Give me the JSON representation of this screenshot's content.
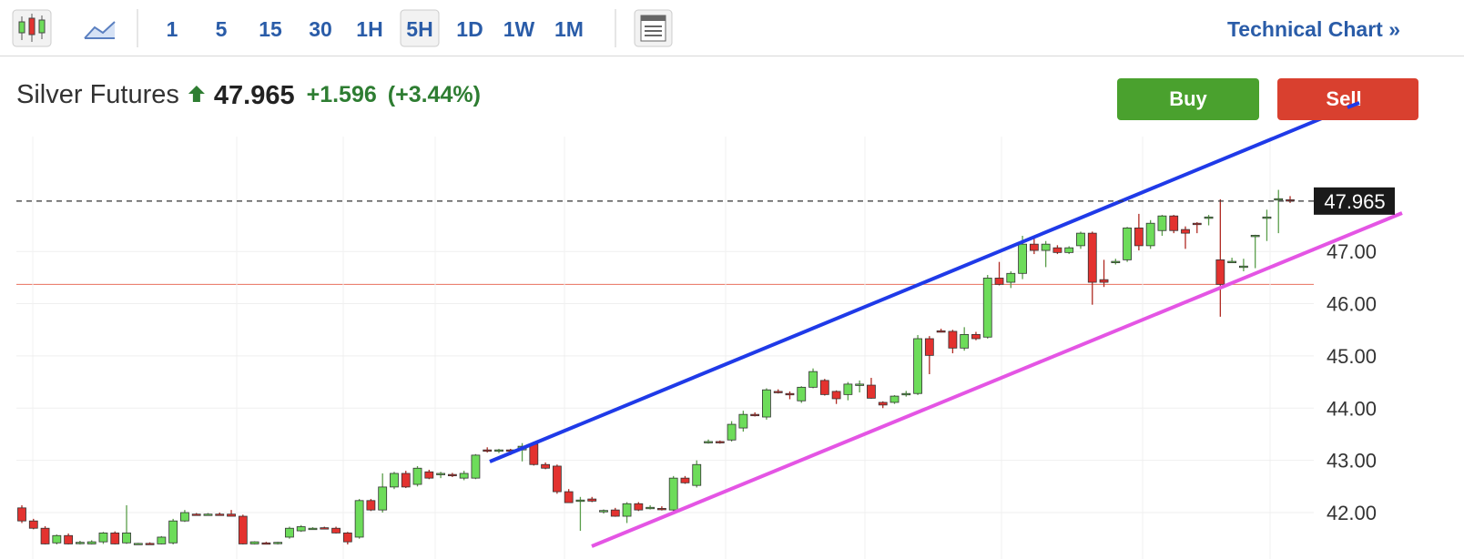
{
  "toolbar": {
    "intervals": [
      "1",
      "5",
      "15",
      "30",
      "1H",
      "5H",
      "1D",
      "1W",
      "1M"
    ],
    "active_interval": "5H",
    "link": "Technical Chart »"
  },
  "header": {
    "title": "Silver Futures",
    "price": "47.965",
    "change": "+1.596",
    "change_percent": "(+3.44%)"
  },
  "buttons": {
    "buy": "Buy",
    "sell": "Sell"
  },
  "chart_data": {
    "type": "candlestick",
    "up_color": "#6ddc5a",
    "down_color": "#e3322f",
    "open": [
      42.09,
      41.84,
      41.7,
      41.42,
      41.56,
      41.42,
      41.4,
      41.44,
      41.61,
      41.42,
      41.4,
      41.41,
      41.4,
      41.42,
      41.84,
      41.97,
      41.96,
      41.97,
      41.97,
      41.93,
      41.4,
      41.42,
      41.41,
      41.53,
      41.65,
      41.7,
      41.71,
      41.7,
      41.61,
      41.53,
      42.23,
      42.05,
      42.49,
      42.75,
      42.54,
      42.78,
      42.73,
      42.73,
      42.66,
      42.66,
      43.2,
      43.18,
      43.2,
      43.2,
      43.31,
      42.92,
      42.89,
      42.4,
      42.23,
      42.26,
      42.02,
      42.05,
      41.93,
      42.17,
      42.1,
      42.08,
      42.05,
      42.66,
      42.52,
      43.36,
      43.36,
      43.39,
      43.62,
      43.88,
      43.83,
      44.32,
      44.28,
      44.14,
      44.4,
      44.53,
      44.32,
      44.26,
      44.45,
      44.44,
      44.11,
      44.11,
      44.26,
      44.28,
      45.33,
      45.48,
      45.47,
      45.15,
      45.41,
      45.36,
      46.49,
      46.41,
      46.58,
      47.14,
      47.02,
      47.07,
      46.98,
      47.11,
      47.35,
      46.46,
      46.8,
      46.84,
      47.45,
      47.11,
      47.4,
      47.68,
      47.42,
      47.54,
      47.66,
      46.84,
      46.81,
      46.72,
      47.31,
      47.66,
      48.0,
      47.99
    ],
    "high": [
      42.14,
      41.88,
      41.74,
      41.58,
      41.6,
      41.46,
      41.47,
      41.63,
      41.64,
      42.14,
      41.42,
      41.43,
      41.55,
      41.88,
      42.05,
      41.99,
      41.99,
      42.0,
      42.05,
      41.96,
      41.45,
      41.44,
      41.44,
      41.73,
      41.76,
      41.72,
      41.73,
      41.73,
      41.63,
      42.26,
      42.26,
      42.75,
      42.78,
      42.8,
      42.89,
      42.82,
      42.78,
      42.76,
      42.8,
      43.12,
      43.25,
      43.22,
      43.22,
      43.33,
      43.36,
      42.96,
      42.92,
      42.45,
      42.3,
      42.3,
      42.06,
      42.09,
      42.2,
      42.2,
      42.14,
      42.12,
      42.7,
      42.7,
      43.0,
      43.4,
      43.38,
      43.75,
      43.95,
      43.92,
      44.38,
      44.36,
      44.32,
      44.42,
      44.76,
      44.56,
      44.34,
      44.5,
      44.53,
      44.58,
      44.13,
      44.25,
      44.33,
      45.4,
      45.38,
      45.52,
      45.5,
      45.55,
      45.46,
      46.55,
      46.8,
      46.62,
      47.3,
      47.3,
      47.2,
      47.12,
      47.1,
      47.38,
      47.38,
      46.84,
      46.86,
      47.47,
      47.72,
      47.6,
      47.7,
      47.7,
      47.48,
      47.56,
      47.7,
      48.0,
      46.88,
      46.86,
      47.32,
      47.8,
      48.18,
      48.06
    ],
    "low": [
      41.8,
      41.68,
      41.39,
      41.39,
      41.39,
      41.39,
      41.39,
      41.4,
      41.39,
      41.4,
      41.39,
      41.39,
      41.39,
      41.39,
      41.82,
      41.94,
      41.94,
      41.94,
      41.93,
      41.39,
      41.39,
      41.39,
      41.39,
      41.5,
      41.63,
      41.68,
      41.69,
      41.6,
      41.39,
      41.5,
      42.03,
      42.0,
      42.45,
      42.47,
      42.5,
      42.64,
      42.66,
      42.68,
      42.62,
      42.64,
      43.15,
      43.14,
      43.1,
      42.98,
      42.9,
      42.83,
      42.36,
      42.19,
      41.65,
      42.2,
      41.98,
      41.92,
      41.8,
      42.03,
      42.06,
      42.04,
      42.0,
      42.55,
      42.48,
      43.32,
      43.32,
      43.36,
      43.55,
      43.84,
      43.78,
      44.28,
      44.17,
      44.1,
      44.38,
      44.24,
      44.08,
      44.15,
      44.3,
      44.18,
      44.0,
      44.08,
      44.22,
      44.25,
      44.65,
      45.45,
      45.05,
      45.1,
      45.3,
      45.33,
      46.35,
      46.3,
      46.47,
      46.95,
      46.7,
      46.95,
      46.95,
      47.05,
      45.98,
      46.32,
      46.75,
      46.8,
      47.02,
      47.05,
      47.3,
      47.35,
      47.05,
      47.35,
      47.5,
      45.75,
      46.78,
      46.62,
      46.68,
      47.2,
      47.35,
      47.93
    ],
    "close": [
      41.84,
      41.7,
      41.4,
      41.56,
      41.4,
      41.43,
      41.44,
      41.61,
      41.4,
      41.61,
      41.41,
      41.4,
      41.53,
      41.84,
      42.0,
      41.96,
      41.97,
      41.96,
      41.93,
      41.4,
      41.44,
      41.41,
      41.43,
      41.7,
      41.73,
      41.7,
      41.69,
      41.61,
      41.44,
      42.23,
      42.05,
      42.49,
      42.75,
      42.49,
      42.85,
      42.66,
      42.75,
      42.71,
      42.75,
      43.1,
      43.18,
      43.2,
      43.18,
      43.27,
      42.92,
      42.85,
      42.4,
      42.19,
      42.24,
      42.22,
      42.04,
      41.93,
      42.17,
      42.05,
      42.1,
      42.07,
      42.66,
      42.57,
      42.92,
      43.36,
      43.35,
      43.69,
      43.88,
      43.87,
      44.35,
      44.3,
      44.26,
      44.4,
      44.7,
      44.26,
      44.18,
      44.46,
      44.46,
      44.19,
      44.06,
      44.23,
      44.28,
      45.33,
      45.01,
      45.47,
      45.15,
      45.41,
      45.33,
      46.49,
      46.37,
      46.58,
      47.14,
      47.02,
      47.14,
      46.98,
      47.07,
      47.35,
      46.41,
      46.41,
      46.81,
      47.45,
      47.11,
      47.54,
      47.68,
      47.4,
      47.35,
      47.52,
      47.66,
      46.37,
      46.81,
      46.72,
      47.31,
      47.66,
      48.01,
      47.965
    ],
    "ylim": [
      41.39,
      49.2
    ],
    "yticks": [
      {
        "value": 42,
        "label": "42.00"
      },
      {
        "value": 43,
        "label": "43.00"
      },
      {
        "value": 44,
        "label": "44.00"
      },
      {
        "value": 45,
        "label": "45.00"
      },
      {
        "value": 46,
        "label": "46.00"
      },
      {
        "value": 47,
        "label": "47.00"
      }
    ],
    "grid": true,
    "reference_line": 46.369,
    "reference_color": "#e8705e"
  }
}
